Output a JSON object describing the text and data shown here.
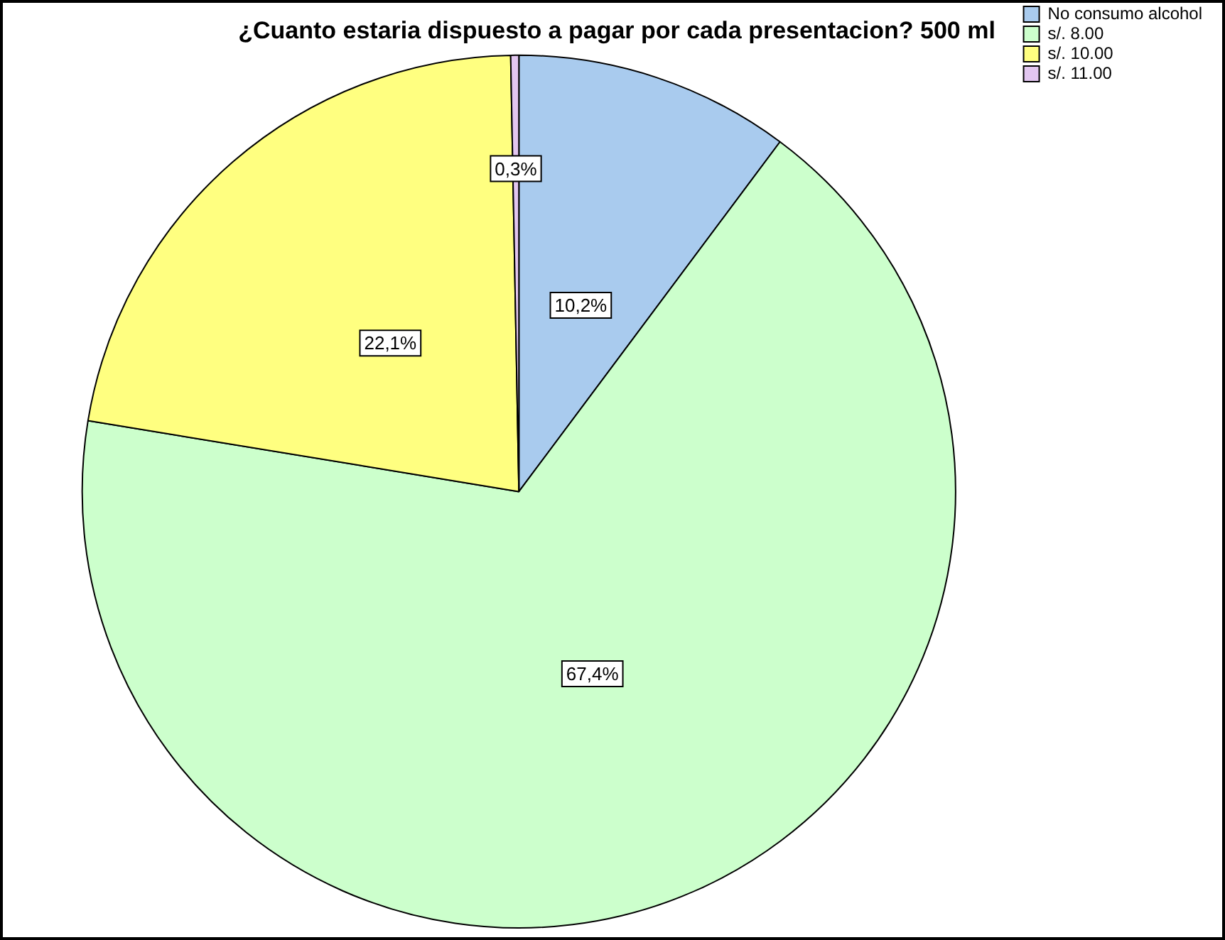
{
  "chart_data": {
    "type": "pie",
    "title": "¿Cuanto estaria dispuesto a pagar por cada presentacion? 500 ml",
    "categories": [
      "No consumo alcohol",
      "s/. 8.00",
      "s/. 10.00",
      "s/. 11.00"
    ],
    "values": [
      10.2,
      67.4,
      22.1,
      0.3
    ],
    "value_labels": [
      "10,2%",
      "67,4%",
      "22,1%",
      "0,3%"
    ],
    "colors": [
      "#a9cbee",
      "#ccffcc",
      "#ffff80",
      "#e2c6f0"
    ],
    "legend": "top right"
  }
}
